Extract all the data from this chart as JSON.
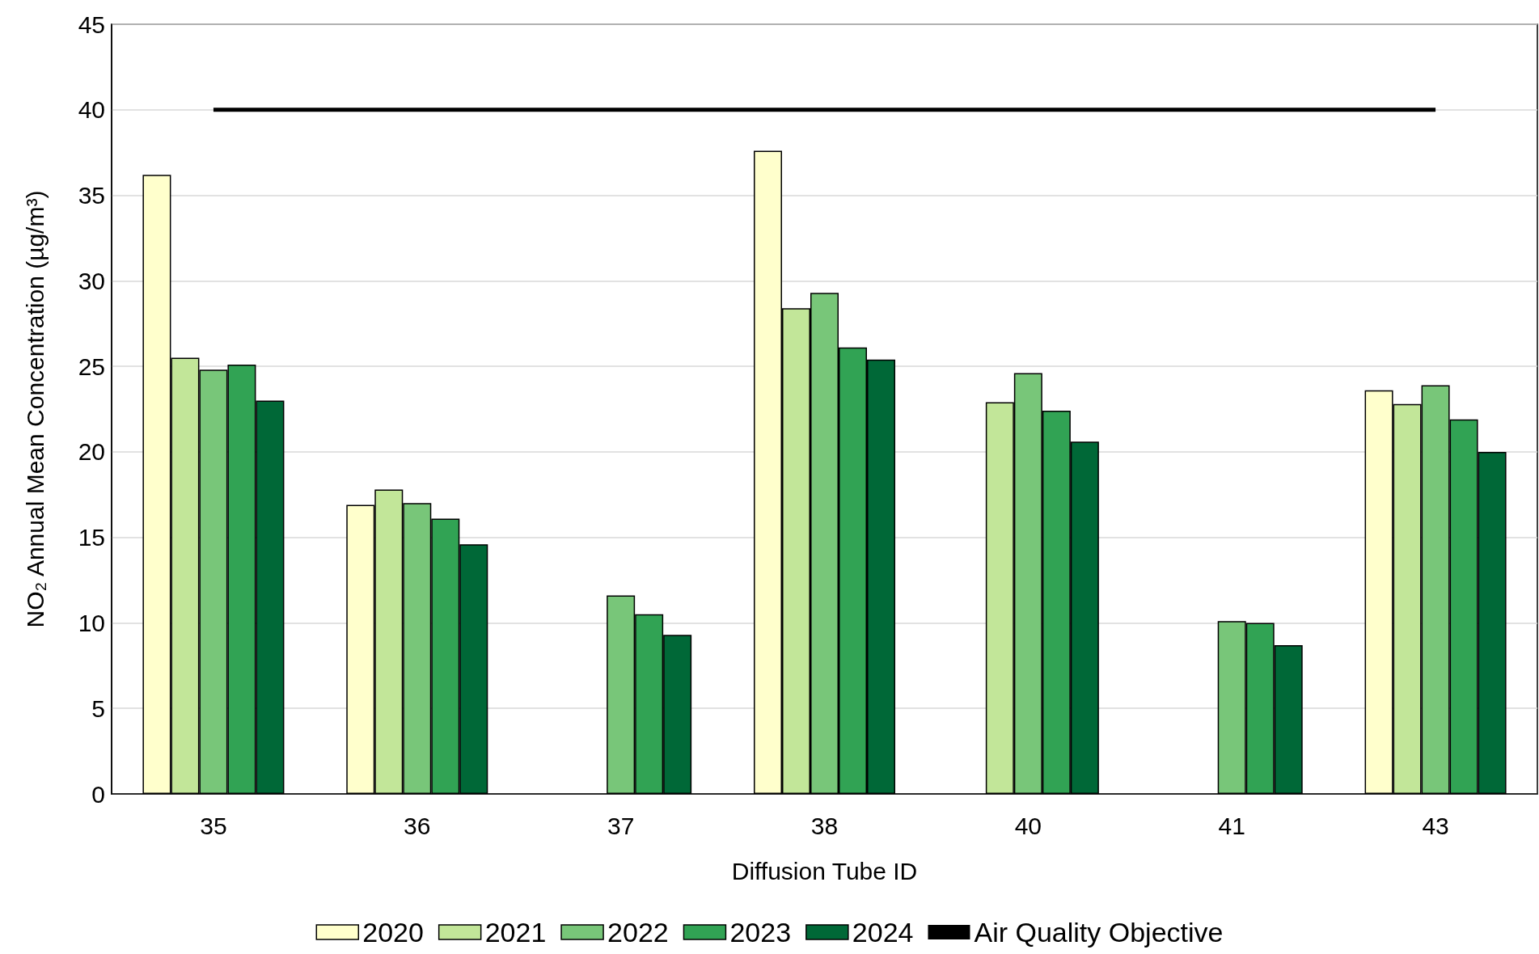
{
  "chart_data": {
    "type": "bar",
    "xlabel": "Diffusion Tube ID",
    "ylabel": "NO₂ Annual Mean Concentration (µg/m³)",
    "categories": [
      "35",
      "36",
      "37",
      "38",
      "40",
      "41",
      "43"
    ],
    "series": [
      {
        "name": "2020",
        "color": "#ffffcc",
        "values": [
          36.2,
          16.9,
          null,
          37.6,
          null,
          null,
          23.6
        ]
      },
      {
        "name": "2021",
        "color": "#c2e699",
        "values": [
          25.5,
          17.8,
          null,
          28.4,
          22.9,
          null,
          22.8
        ]
      },
      {
        "name": "2022",
        "color": "#78c679",
        "values": [
          24.8,
          17.0,
          11.6,
          29.3,
          24.6,
          10.1,
          23.9
        ]
      },
      {
        "name": "2023",
        "color": "#31a354",
        "values": [
          25.1,
          16.1,
          10.5,
          26.1,
          22.4,
          10.0,
          21.9
        ]
      },
      {
        "name": "2024",
        "color": "#006837",
        "values": [
          23.0,
          14.6,
          9.3,
          25.4,
          20.6,
          8.7,
          20.0
        ]
      },
      {
        "name": "Air Quality Objective",
        "type": "line",
        "color": "#000000",
        "marker": "none",
        "values": [
          40,
          40,
          40,
          40,
          40,
          40,
          40
        ]
      }
    ],
    "ylim": [
      0,
      45
    ],
    "yticks": [
      0,
      5,
      10,
      15,
      20,
      25,
      30,
      35,
      40,
      45
    ],
    "grid": "y",
    "legend": "bottom"
  }
}
